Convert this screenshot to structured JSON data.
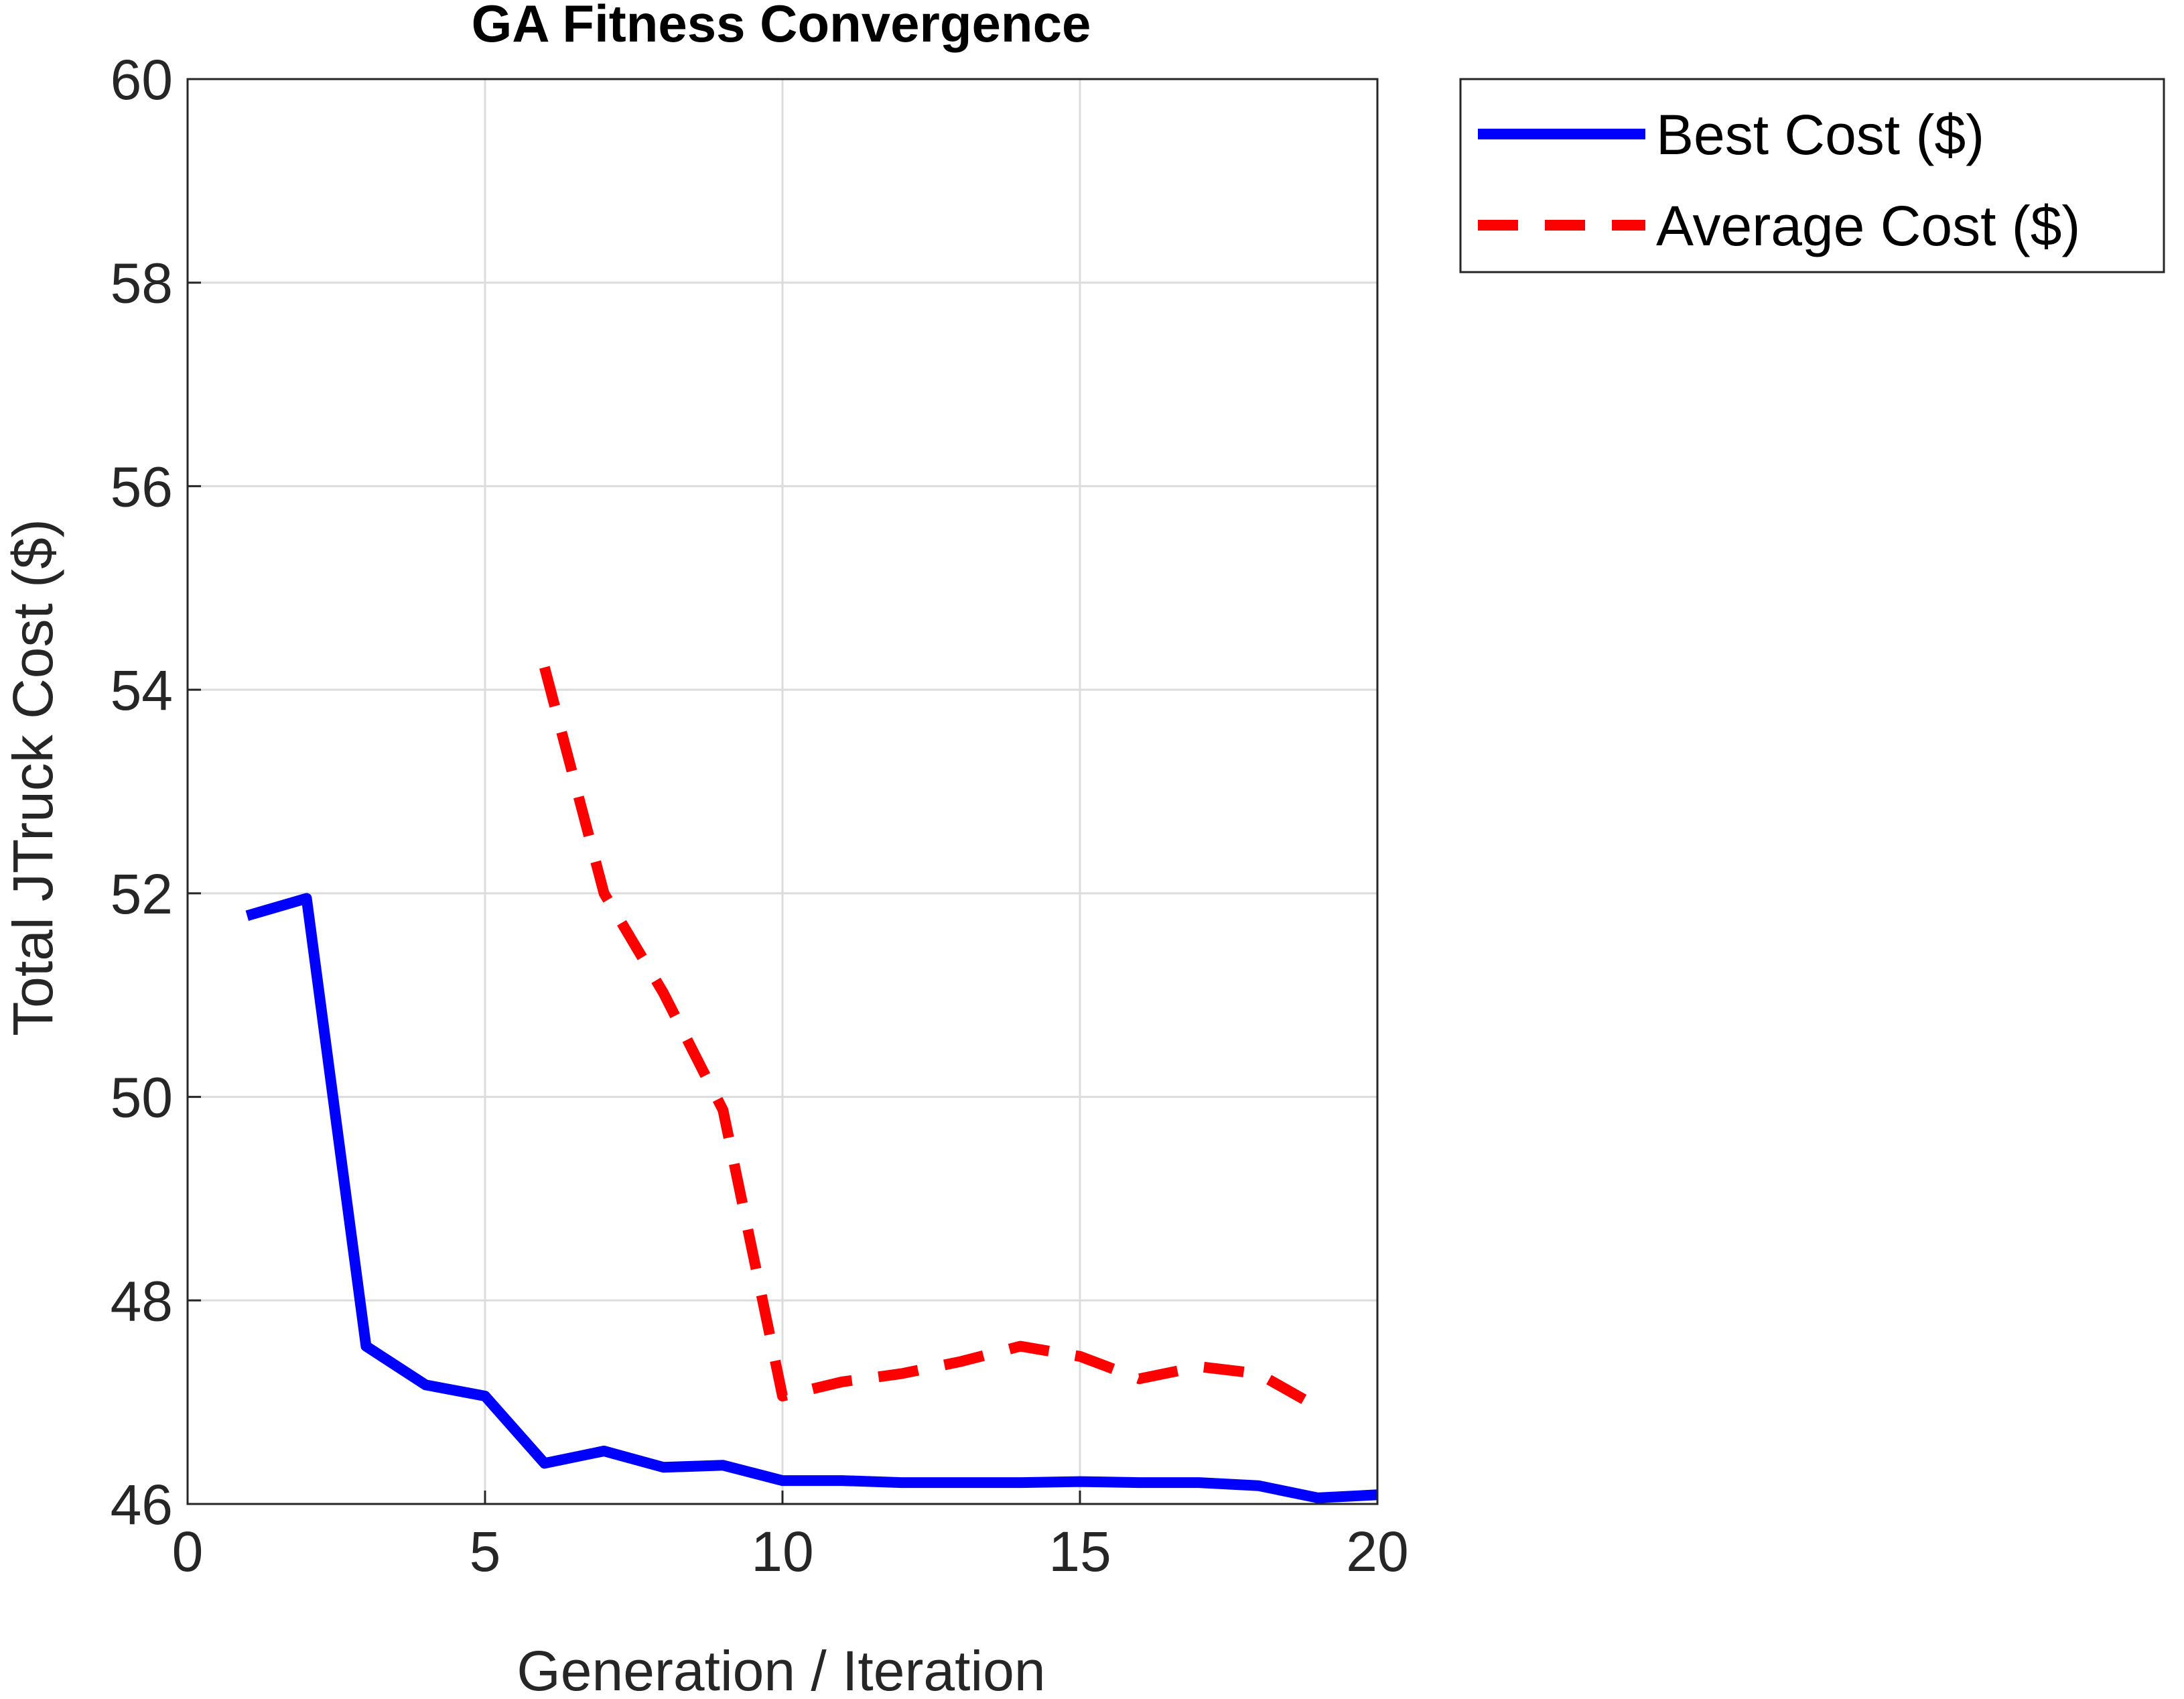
{
  "chart_data": {
    "type": "line",
    "title": "GA Fitness Convergence",
    "xlabel": "Generation / Iteration",
    "ylabel": "Total JTruck Cost ($)",
    "xlim": [
      0,
      20
    ],
    "ylim": [
      46,
      60
    ],
    "xticks": [
      0,
      5,
      10,
      15,
      20
    ],
    "yticks": [
      46,
      48,
      50,
      52,
      54,
      56,
      58,
      60
    ],
    "grid": true,
    "legend_position": "outside-top-right",
    "series": [
      {
        "name": "Best Cost ($)",
        "color": "#0000ff",
        "style": "solid",
        "x": [
          1,
          2,
          3,
          4,
          5,
          6,
          7,
          8,
          9,
          10,
          11,
          12,
          13,
          14,
          15,
          16,
          17,
          18,
          19,
          20
        ],
        "y": [
          51.78,
          51.95,
          47.55,
          47.17,
          47.06,
          46.4,
          46.52,
          46.36,
          46.38,
          46.23,
          46.23,
          46.21,
          46.21,
          46.21,
          46.22,
          46.21,
          46.21,
          46.18,
          46.06,
          46.09
        ]
      },
      {
        "name": "Average Cost ($)",
        "color": "#ff0000",
        "style": "dashed",
        "x": [
          6,
          7,
          8,
          9,
          10,
          11,
          12,
          13,
          14,
          15,
          16,
          17,
          18,
          19
        ],
        "y": [
          54.22,
          52.0,
          51.02,
          49.87,
          47.06,
          47.2,
          47.28,
          47.4,
          47.55,
          47.45,
          47.23,
          47.35,
          47.28,
          46.95
        ]
      }
    ]
  }
}
